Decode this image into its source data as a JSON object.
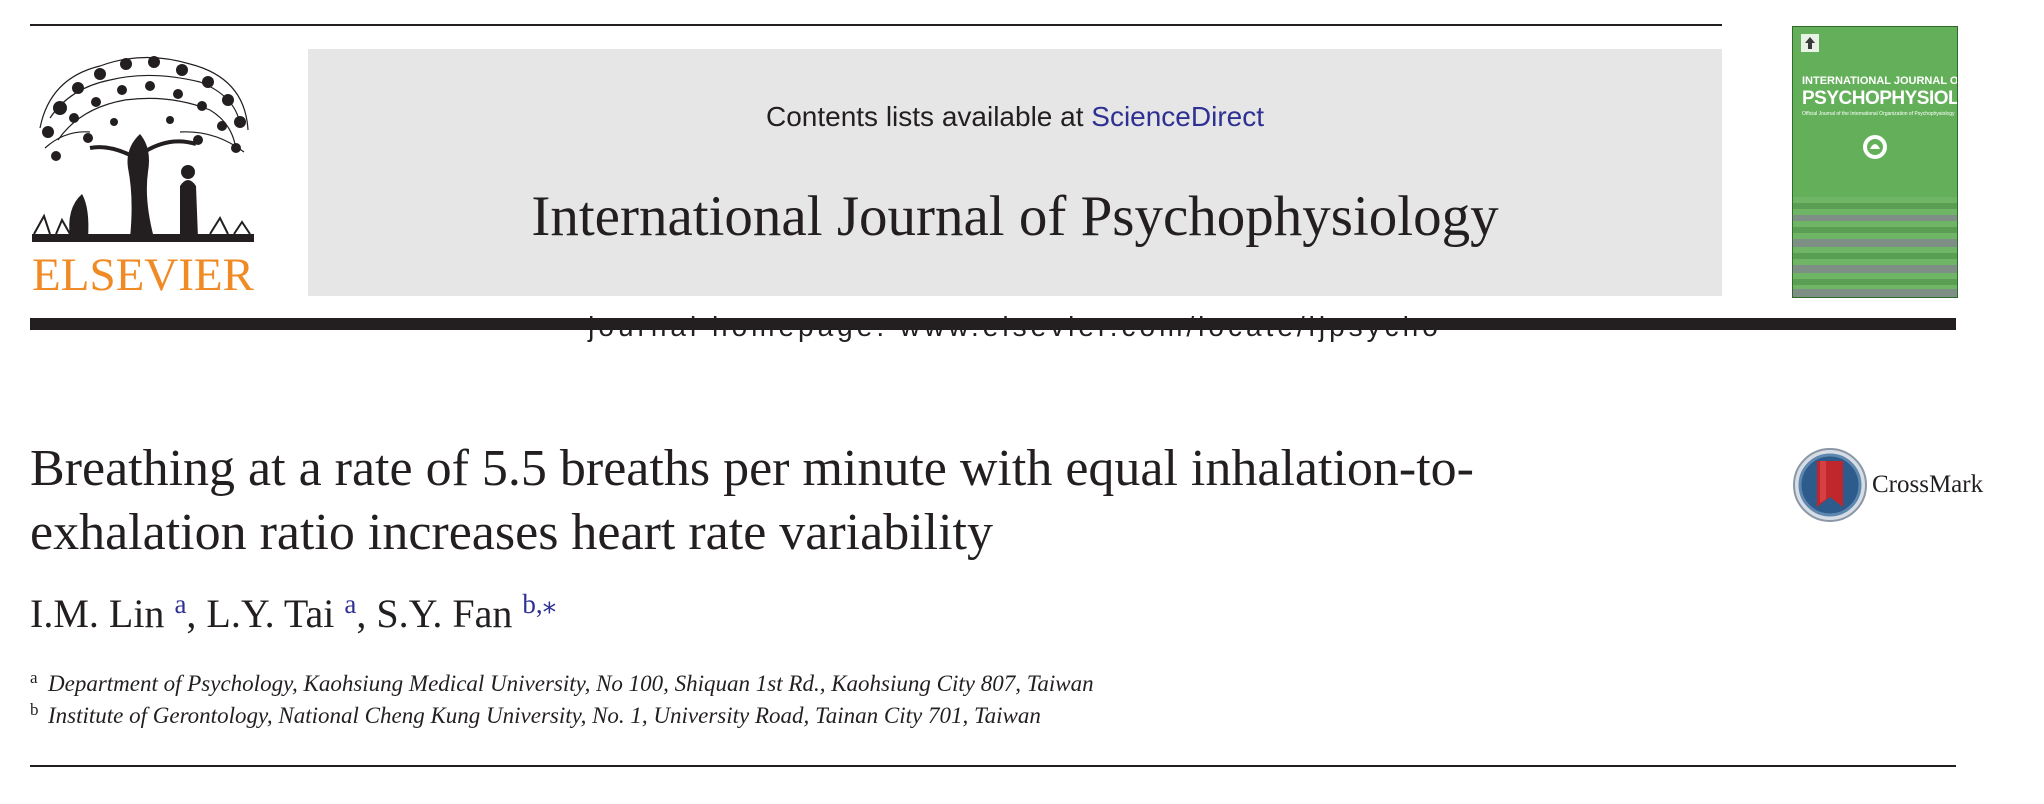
{
  "header": {
    "contents_prefix": "Contents lists available at ",
    "contents_link": "ScienceDirect",
    "journal_title": "International Journal of Psychophysiology",
    "homepage": "journal homepage: www.elsevier.com/locate/ijpsycho"
  },
  "publisher": {
    "name": "ELSEVIER",
    "brand_color": "#f08a24"
  },
  "cover": {
    "line1": "INTERNATIONAL JOURNAL OF",
    "line2": "PSYCHOPHYSIOLOGY",
    "line3": "Official Journal of the International Organization of Psychophysiology",
    "color": "#64b05a"
  },
  "article": {
    "title": "Breathing at a rate of 5.5 breaths per minute with equal inhalation-to-exhalation ratio increases heart rate variability",
    "crossmark": "CrossMark",
    "authors": [
      {
        "name": "I.M. Lin",
        "sup": "a",
        "sep": ", "
      },
      {
        "name": "L.Y. Tai",
        "sup": "a",
        "sep": ", "
      },
      {
        "name": "S.Y. Fan",
        "sup": "b,⁎",
        "sep": ""
      }
    ],
    "affiliations": [
      {
        "mark": "a",
        "text": "Department of Psychology, Kaohsiung Medical University, No 100, Shiquan 1st Rd., Kaohsiung City 807, Taiwan"
      },
      {
        "mark": "b",
        "text": "Institute of Gerontology, National Cheng Kung University, No. 1, University Road, Tainan City 701, Taiwan"
      }
    ]
  },
  "colors": {
    "link": "#2e3192",
    "panel": "#e6e6e7",
    "text": "#231f20"
  }
}
